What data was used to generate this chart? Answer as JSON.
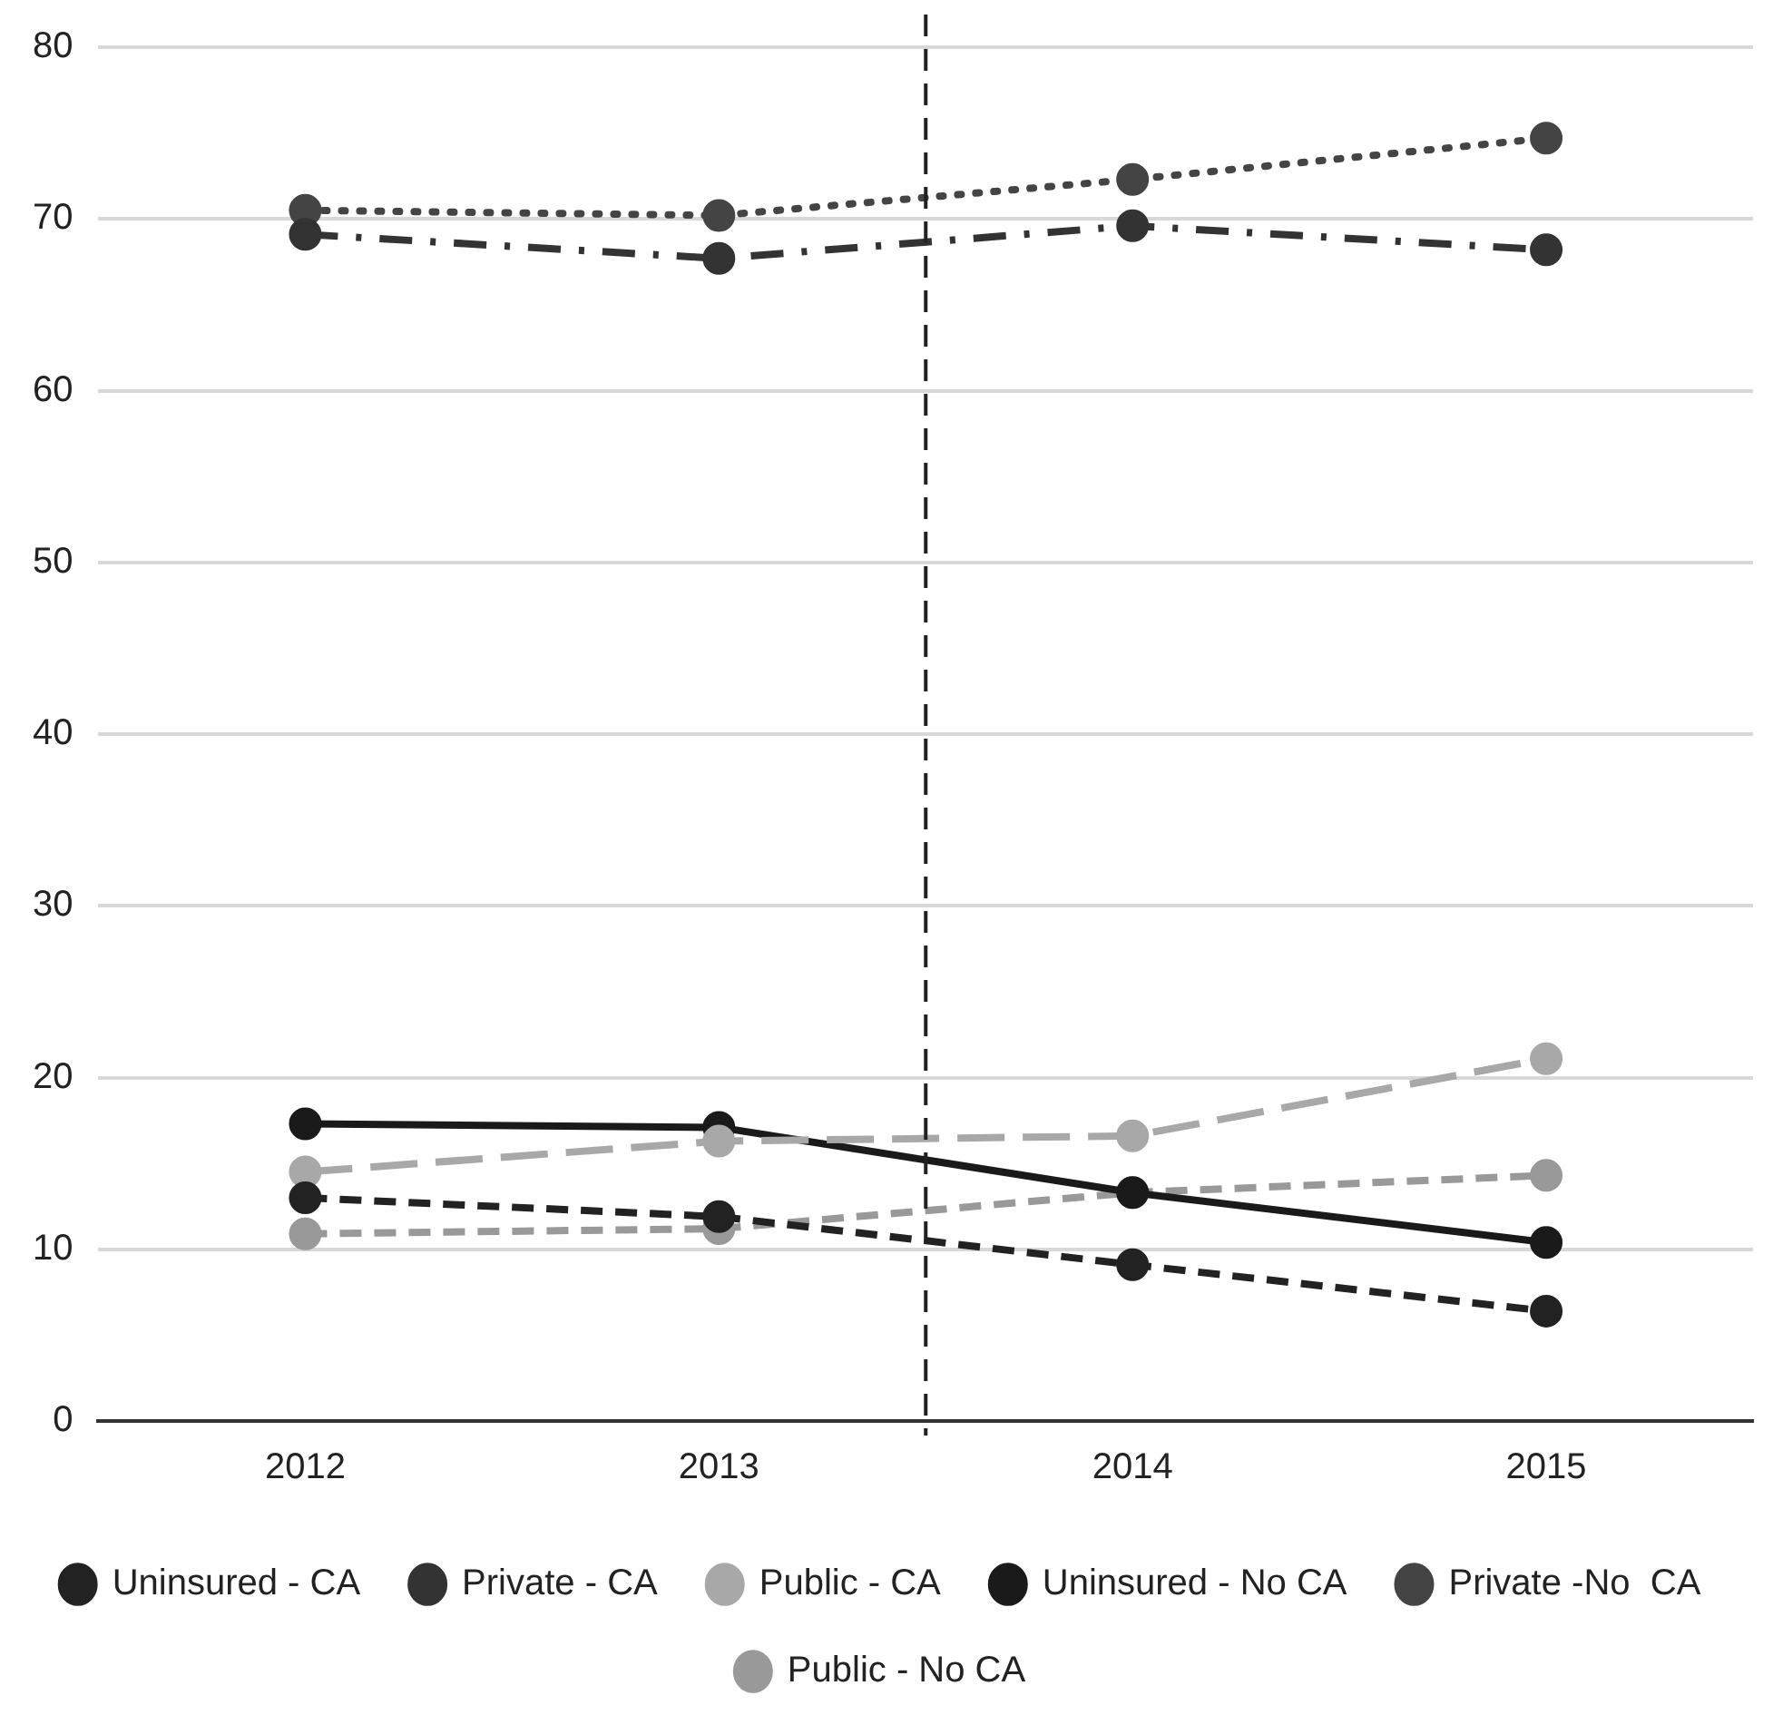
{
  "chart_data": {
    "type": "line",
    "x": [
      2012,
      2013,
      2014,
      2015
    ],
    "xlim": [
      2011.5,
      2015.5
    ],
    "xticks": [
      2012,
      2013,
      2014,
      2015
    ],
    "ylim": [
      0,
      80
    ],
    "yticks": [
      0,
      10,
      20,
      30,
      40,
      50,
      60,
      70,
      80
    ],
    "grid": "y",
    "legend": "bottom",
    "marker": "circle",
    "ref_lines": [
      {
        "axis": "x",
        "value": 2013.5,
        "color": "#222222",
        "line_style": "dashed"
      }
    ],
    "series": [
      {
        "name": "Uninsured - CA",
        "color": "#222222",
        "line_style": "dashed",
        "values": [
          13.0,
          11.9,
          9.1,
          6.4
        ]
      },
      {
        "name": "Private - CA",
        "color": "#333333",
        "line_style": "dashdot",
        "values": [
          69.1,
          67.7,
          69.6,
          68.2
        ]
      },
      {
        "name": "Public - CA",
        "color": "#a8a8a8",
        "line_style": "longdash",
        "values": [
          14.5,
          16.3,
          16.6,
          21.1
        ]
      },
      {
        "name": "Uninsured - No CA",
        "color": "#1a1a1a",
        "line_style": "solid",
        "values": [
          17.3,
          17.1,
          13.3,
          10.4
        ]
      },
      {
        "name": "Private -No  CA",
        "color": "#444444",
        "line_style": "dotted",
        "values": [
          70.5,
          70.2,
          72.3,
          74.7
        ]
      },
      {
        "name": "Public - No CA",
        "color": "#999999",
        "line_style": "dashed",
        "values": [
          10.9,
          11.2,
          13.3,
          14.3
        ]
      }
    ]
  }
}
